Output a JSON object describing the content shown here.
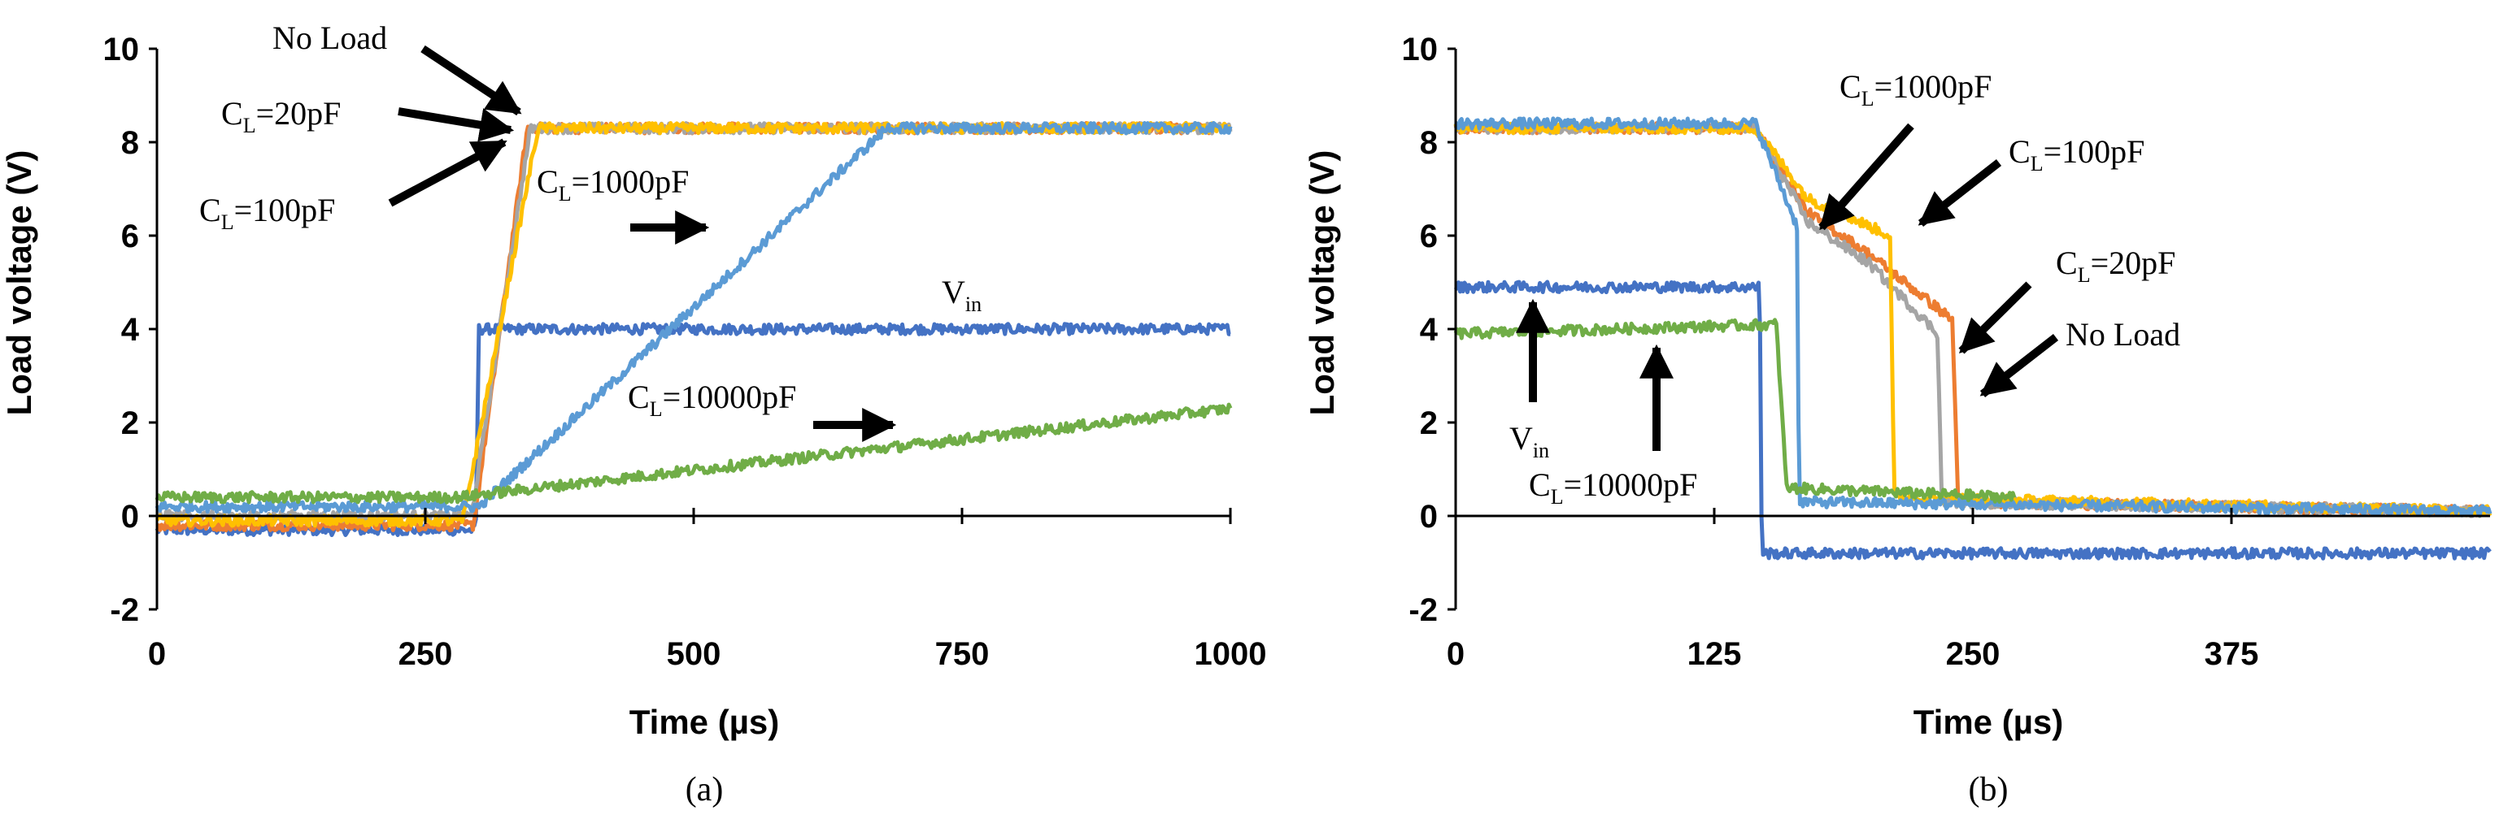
{
  "chart_data": [
    {
      "type": "line",
      "panel_label": "(a)",
      "xlabel": "Time (µs)",
      "ylabel": "Load voltage (V)",
      "xlim": [
        0,
        1000
      ],
      "ylim": [
        -2,
        10
      ],
      "xticks": [
        "0",
        "250",
        "500",
        "750",
        "1000"
      ],
      "yticks": [
        "-2",
        "0",
        "2",
        "4",
        "6",
        "8",
        "10"
      ],
      "series": [
        {
          "name": "Vin",
          "color": "#4472c4",
          "x": [
            0,
            297,
            300,
            1000
          ],
          "y": [
            -0.3,
            -0.3,
            4.0,
            4.0
          ]
        },
        {
          "name": "No Load",
          "color": "#ed7d31",
          "x": [
            0,
            295,
            345,
            1000
          ],
          "y": [
            -0.2,
            -0.2,
            8.3,
            8.3
          ]
        },
        {
          "name": "CL=20pF",
          "color": "#a5a5a5",
          "x": [
            0,
            293,
            348,
            1000
          ],
          "y": [
            0.0,
            0.0,
            8.3,
            8.3
          ]
        },
        {
          "name": "CL=100pF",
          "color": "#ffc000",
          "x": [
            0,
            285,
            355,
            1000
          ],
          "y": [
            -0.1,
            -0.1,
            8.3,
            8.3
          ]
        },
        {
          "name": "CL=1000pF",
          "color": "#5b9bd5",
          "x": [
            0,
            300,
            680,
            1000
          ],
          "y": [
            0.2,
            0.2,
            8.3,
            8.3
          ]
        },
        {
          "name": "CL=10000pF",
          "color": "#70ad47",
          "x": [
            0,
            280,
            1000
          ],
          "y": [
            0.4,
            0.4,
            2.3
          ]
        }
      ],
      "annotations": [
        {
          "text": "No Load",
          "main": "No Load",
          "sub": ""
        },
        {
          "text": "CL=20pF",
          "main": "C",
          "sub": "L",
          "rest": "=20pF"
        },
        {
          "text": "CL=100pF",
          "main": "C",
          "sub": "L",
          "rest": "=100pF"
        },
        {
          "text": "CL=1000pF",
          "main": "C",
          "sub": "L",
          "rest": "=1000pF"
        },
        {
          "text": "Vin",
          "main": "V",
          "sub": "in",
          "rest": ""
        },
        {
          "text": "CL=10000pF",
          "main": "C",
          "sub": "L",
          "rest": "=10000pF"
        }
      ]
    },
    {
      "type": "line",
      "panel_label": "(b)",
      "xlabel": "Time (µs)",
      "ylabel": "Load voltage (V)",
      "xlim": [
        0,
        500
      ],
      "ylim": [
        -2,
        10
      ],
      "xticks": [
        "0",
        "125",
        "250",
        "375"
      ],
      "yticks": [
        "-2",
        "0",
        "2",
        "4",
        "6",
        "8",
        "10"
      ],
      "series": [
        {
          "name": "Vin",
          "color": "#4472c4",
          "x": [
            0,
            147,
            148,
            500
          ],
          "y": [
            4.9,
            4.9,
            -0.8,
            -0.8
          ]
        },
        {
          "name": "No Load",
          "color": "#ed7d31",
          "x": [
            0,
            145,
            170,
            200,
            240,
            243,
            500
          ],
          "y": [
            8.3,
            8.3,
            6.5,
            5.6,
            4.2,
            0.3,
            0.1
          ]
        },
        {
          "name": "CL=20pF",
          "color": "#a5a5a5",
          "x": [
            0,
            145,
            170,
            200,
            233,
            235,
            500
          ],
          "y": [
            8.3,
            8.3,
            6.3,
            5.4,
            3.9,
            0.3,
            0.1
          ]
        },
        {
          "name": "CL=100pF",
          "color": "#ffc000",
          "x": [
            0,
            145,
            170,
            210,
            212,
            500
          ],
          "y": [
            8.3,
            8.3,
            6.8,
            6.0,
            0.4,
            0.1
          ]
        },
        {
          "name": "CL=1000pF",
          "color": "#5b9bd5",
          "x": [
            0,
            145,
            165,
            166,
            500
          ],
          "y": [
            8.4,
            8.4,
            6.2,
            0.3,
            0.1
          ]
        },
        {
          "name": "CL=10000pF",
          "color": "#70ad47",
          "x": [
            0,
            155,
            160,
            270
          ],
          "y": [
            3.9,
            4.1,
            0.6,
            0.4
          ]
        }
      ],
      "annotations": [
        {
          "text": "CL=1000pF",
          "main": "C",
          "sub": "L",
          "rest": "=1000pF"
        },
        {
          "text": "CL=100pF",
          "main": "C",
          "sub": "L",
          "rest": "=100pF"
        },
        {
          "text": "CL=20pF",
          "main": "C",
          "sub": "L",
          "rest": "=20pF"
        },
        {
          "text": "No Load",
          "main": "No Load",
          "sub": "",
          "rest": ""
        },
        {
          "text": "Vin",
          "main": "V",
          "sub": "in",
          "rest": ""
        },
        {
          "text": "CL=10000pF",
          "main": "C",
          "sub": "L",
          "rest": "=10000pF"
        }
      ]
    }
  ]
}
